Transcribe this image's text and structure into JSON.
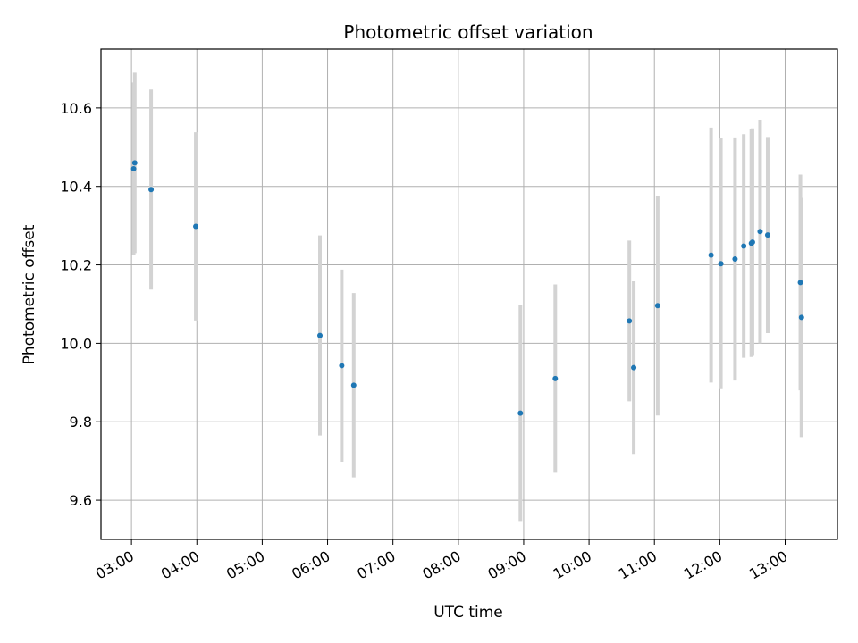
{
  "chart_data": {
    "type": "scatter",
    "title": "Photometric offset variation",
    "xlabel": "UTC time",
    "ylabel": "Photometric offset",
    "x_ticks": [
      "03:00",
      "04:00",
      "05:00",
      "06:00",
      "07:00",
      "08:00",
      "09:00",
      "10:00",
      "11:00",
      "12:00",
      "13:00"
    ],
    "y_ticks": [
      9.6,
      9.8,
      10.0,
      10.2,
      10.4,
      10.6
    ],
    "xlim": [
      "02:32",
      "13:48"
    ],
    "ylim": [
      9.5,
      10.75
    ],
    "grid": true,
    "marker_color": "#1f77b4",
    "errorbar_color": "#d3d3d3",
    "points": [
      {
        "x": "03:02",
        "y": 10.445,
        "err": 0.22
      },
      {
        "x": "03:03",
        "y": 10.46,
        "err": 0.23
      },
      {
        "x": "03:18",
        "y": 10.392,
        "err": 0.255
      },
      {
        "x": "03:59",
        "y": 10.298,
        "err": 0.24
      },
      {
        "x": "05:53",
        "y": 10.02,
        "err": 0.255
      },
      {
        "x": "06:13",
        "y": 9.943,
        "err": 0.245
      },
      {
        "x": "06:24",
        "y": 9.893,
        "err": 0.235
      },
      {
        "x": "08:57",
        "y": 9.822,
        "err": 0.275
      },
      {
        "x": "09:29",
        "y": 9.91,
        "err": 0.24
      },
      {
        "x": "10:37",
        "y": 10.057,
        "err": 0.205
      },
      {
        "x": "10:41",
        "y": 9.938,
        "err": 0.22
      },
      {
        "x": "11:03",
        "y": 10.096,
        "err": 0.28
      },
      {
        "x": "11:52",
        "y": 10.225,
        "err": 0.325
      },
      {
        "x": "12:01",
        "y": 10.203,
        "err": 0.32
      },
      {
        "x": "12:14",
        "y": 10.215,
        "err": 0.31
      },
      {
        "x": "12:22",
        "y": 10.248,
        "err": 0.285
      },
      {
        "x": "12:29",
        "y": 10.255,
        "err": 0.29
      },
      {
        "x": "12:30",
        "y": 10.258,
        "err": 0.29
      },
      {
        "x": "12:37",
        "y": 10.285,
        "err": 0.285
      },
      {
        "x": "12:44",
        "y": 10.276,
        "err": 0.25
      },
      {
        "x": "13:14",
        "y": 10.155,
        "err": 0.275
      },
      {
        "x": "13:15",
        "y": 10.066,
        "err": 0.305
      }
    ]
  }
}
